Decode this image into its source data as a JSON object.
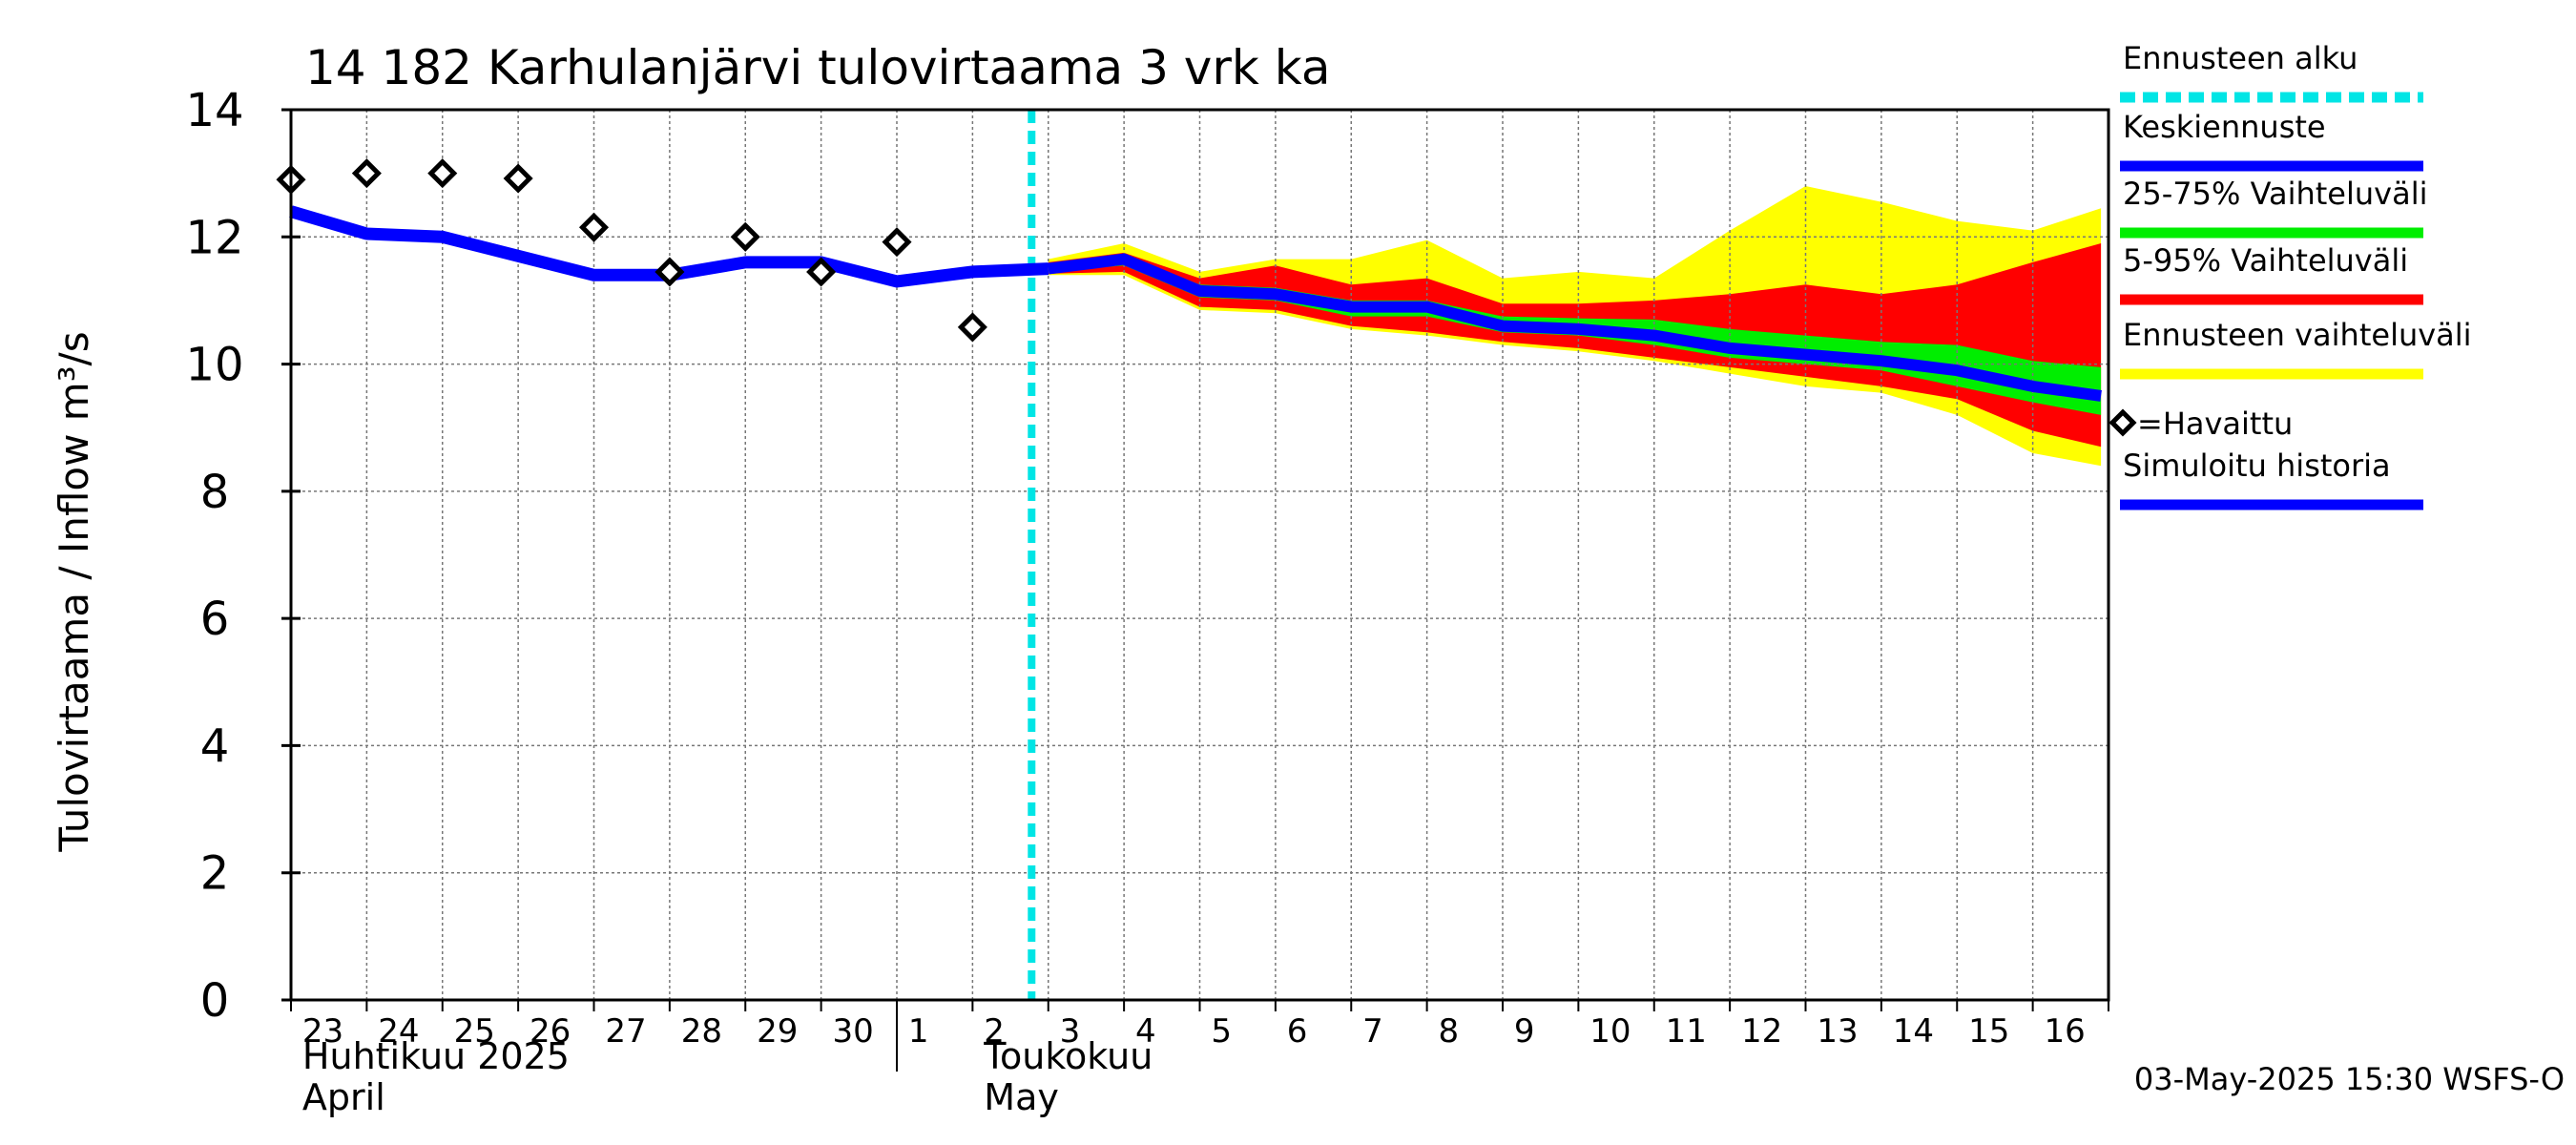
{
  "chart_data": {
    "type": "line",
    "title": "14 182 Karhulanjärvi tulovirtaama 3 vrk ka",
    "ylabel": "Tulovirtaama / Inflow    m³/s",
    "ylim": [
      0,
      14
    ],
    "yticks": [
      0,
      2,
      4,
      6,
      8,
      10,
      12,
      14
    ],
    "grid": true,
    "legend_position": "right",
    "x_tick_labels": [
      "23",
      "24",
      "25",
      "26",
      "27",
      "28",
      "29",
      "30",
      "1",
      "2",
      "3",
      "4",
      "5",
      "6",
      "7",
      "8",
      "9",
      "10",
      "11",
      "12",
      "13",
      "14",
      "15",
      "16"
    ],
    "month_labels": [
      {
        "fi": "Huhtikuu  2025",
        "en": "April",
        "at": "23"
      },
      {
        "fi": "Toukokuu",
        "en": "May",
        "at": "2"
      }
    ],
    "forecast_start": "3",
    "timestamp": "03-May-2025 15:30 WSFS-O",
    "simulated_history": {
      "name": "Simuloitu historia",
      "color": "#0000ff",
      "x": [
        "23",
        "24",
        "25",
        "26",
        "27",
        "28",
        "29",
        "30",
        "1",
        "2",
        "3"
      ],
      "values": [
        12.4,
        12.05,
        12.0,
        11.7,
        11.4,
        11.4,
        11.6,
        11.6,
        11.3,
        11.45,
        11.5
      ]
    },
    "observed": {
      "name": "=Havaittu",
      "x": [
        "23",
        "24",
        "25",
        "26",
        "27",
        "28",
        "29",
        "30",
        "1",
        "2"
      ],
      "values": [
        12.9,
        13.0,
        13.0,
        12.92,
        12.15,
        11.45,
        12.0,
        11.45,
        11.92,
        10.58
      ]
    },
    "forecast_x": [
      "3",
      "4",
      "5",
      "6",
      "7",
      "8",
      "9",
      "10",
      "11",
      "12",
      "13",
      "14",
      "15",
      "16",
      "16.9"
    ],
    "median_forecast": {
      "name": "Keskiennuste",
      "color": "#0000ff",
      "values": [
        11.5,
        11.65,
        11.15,
        11.1,
        10.9,
        10.9,
        10.6,
        10.55,
        10.45,
        10.25,
        10.15,
        10.05,
        9.9,
        9.65,
        9.5
      ]
    },
    "band_25_75": {
      "name": "25-75% Vaihteluväli",
      "color": "#00ee00",
      "low": [
        11.45,
        11.55,
        11.05,
        11.0,
        10.75,
        10.75,
        10.5,
        10.45,
        10.3,
        10.1,
        10.0,
        9.9,
        9.65,
        9.4,
        9.2
      ],
      "high": [
        11.55,
        11.72,
        11.25,
        11.2,
        11.0,
        11.0,
        10.75,
        10.72,
        10.7,
        10.55,
        10.45,
        10.35,
        10.3,
        10.05,
        9.95
      ]
    },
    "band_5_95": {
      "name": "5-95% Vaihteluväli",
      "color": "#ff0000",
      "low": [
        11.42,
        11.45,
        10.9,
        10.85,
        10.6,
        10.5,
        10.35,
        10.25,
        10.1,
        9.95,
        9.8,
        9.65,
        9.45,
        8.95,
        8.7
      ],
      "high": [
        11.6,
        11.75,
        11.35,
        11.55,
        11.25,
        11.35,
        10.95,
        10.95,
        11.0,
        11.1,
        11.25,
        11.1,
        11.25,
        11.6,
        11.9
      ]
    },
    "band_total": {
      "name": "Ennusteen vaihteluväli",
      "color": "#ffff00",
      "low": [
        11.4,
        11.4,
        10.85,
        10.8,
        10.55,
        10.45,
        10.3,
        10.2,
        10.05,
        9.85,
        9.65,
        9.55,
        9.2,
        8.6,
        8.4
      ],
      "high": [
        11.65,
        11.9,
        11.45,
        11.65,
        11.65,
        11.95,
        11.35,
        11.45,
        11.35,
        12.1,
        12.8,
        12.55,
        12.25,
        12.1,
        12.45
      ]
    },
    "legend": [
      {
        "key": "forecast_start",
        "label": "Ennusteen alku",
        "color": "#00e5e5",
        "style": "dashed"
      },
      {
        "key": "median",
        "label": "Keskiennuste",
        "color": "#0000ff",
        "style": "line"
      },
      {
        "key": "b2575",
        "label": "25-75% Vaihteluväli",
        "color": "#00ee00",
        "style": "line"
      },
      {
        "key": "b595",
        "label": "5-95% Vaihteluväli",
        "color": "#ff0000",
        "style": "line"
      },
      {
        "key": "total",
        "label": "Ennusteen vaihteluväli",
        "color": "#ffff00",
        "style": "line"
      },
      {
        "key": "observed",
        "label": "=Havaittu",
        "color": "#000000",
        "style": "diamond"
      },
      {
        "key": "history",
        "label": "Simuloitu historia",
        "color": "#0000ff",
        "style": "line"
      }
    ]
  }
}
